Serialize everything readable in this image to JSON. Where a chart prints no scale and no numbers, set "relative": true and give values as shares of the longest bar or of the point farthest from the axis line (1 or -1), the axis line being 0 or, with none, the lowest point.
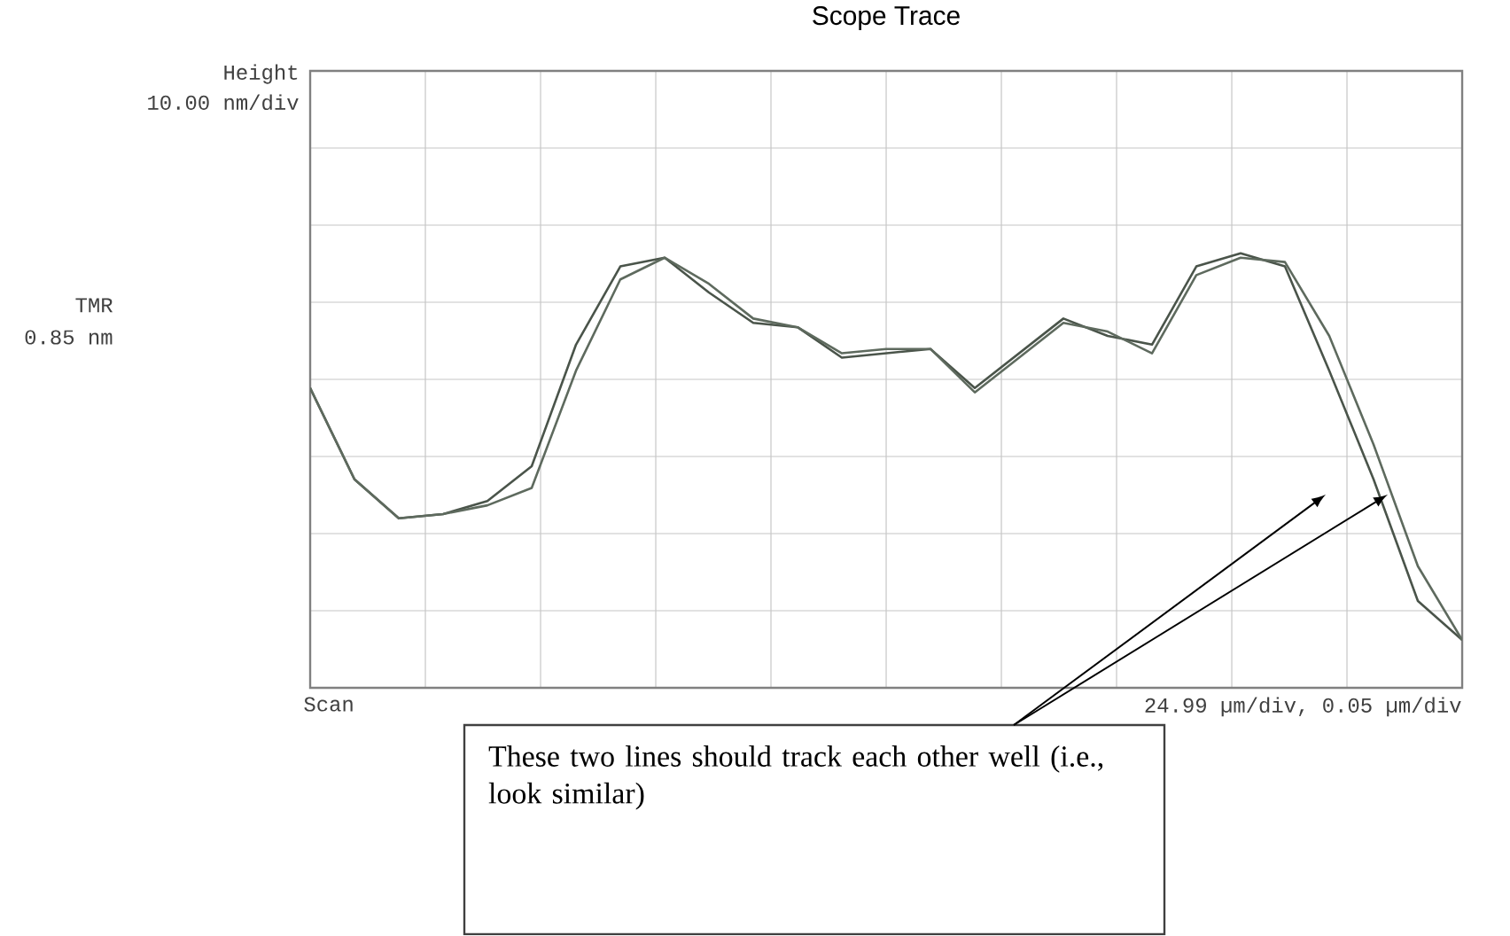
{
  "chart_data": {
    "type": "line",
    "title": "Scope Trace",
    "categories": [
      null,
      null,
      null,
      null,
      null,
      null,
      null,
      null,
      null,
      null,
      null,
      null,
      null,
      null,
      null,
      null,
      null,
      null,
      null,
      null,
      null,
      null,
      null,
      null,
      null,
      null,
      null
    ],
    "relative": true,
    "series": [
      {
        "color": "#4a544a",
        "values": [
          0.69,
          0.48,
          0.39,
          0.4,
          0.43,
          0.51,
          0.79,
          0.97,
          0.99,
          0.91,
          0.84,
          0.83,
          0.76,
          0.77,
          0.78,
          0.69,
          0.77,
          0.85,
          0.81,
          0.79,
          0.97,
          1.0,
          0.97,
          0.73,
          0.48,
          0.2,
          0.11
        ]
      },
      {
        "color": "#5e6a5e",
        "values": [
          0.69,
          0.48,
          0.39,
          0.4,
          0.42,
          0.46,
          0.73,
          0.94,
          0.99,
          0.93,
          0.85,
          0.83,
          0.77,
          0.78,
          0.78,
          0.68,
          0.76,
          0.84,
          0.82,
          0.77,
          0.95,
          0.99,
          0.98,
          0.81,
          0.56,
          0.28,
          0.11
        ]
      }
    ],
    "grid": true,
    "marker": "none",
    "line_style": "solid",
    "annotations": [
      "Height",
      "10.00 nm/div",
      "TMR",
      "0.85 nm",
      "Scan",
      "24.99 µm/div, 0.05 µm/div",
      {
        "text": "These two lines should track each other well (i.e., look similar)"
      }
    ]
  }
}
